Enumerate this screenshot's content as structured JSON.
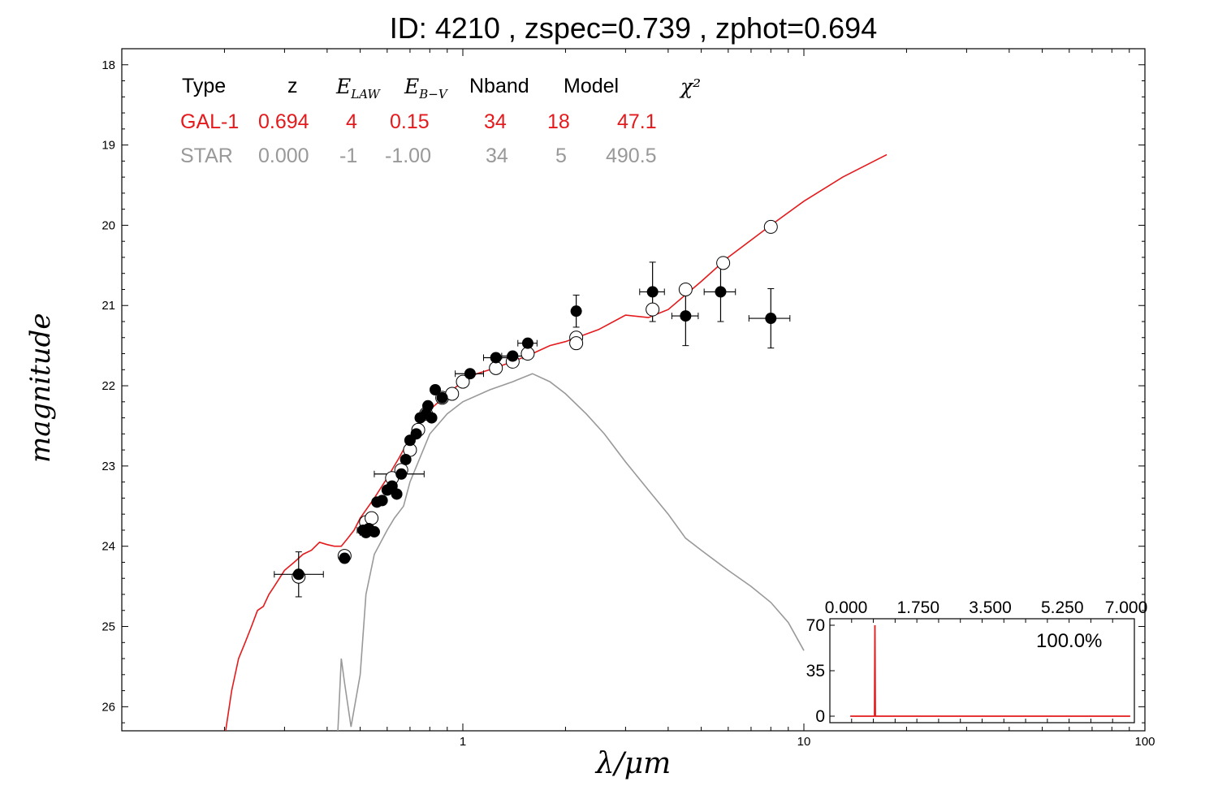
{
  "title": "ID:  4210  , zspec=0.739 , zphot=0.694",
  "chart_data": {
    "type": "scatter",
    "xlabel": "λ/μm",
    "ylabel": "magnitude",
    "xscale": "log",
    "xlim": [
      0.1,
      100
    ],
    "ylim": [
      26.3,
      17.8
    ],
    "x_tick_labels": [
      "1",
      "10",
      "100"
    ],
    "y_ticks": [
      18,
      19,
      20,
      21,
      22,
      23,
      24,
      25,
      26
    ],
    "legend": {
      "headers": [
        "Type",
        "z",
        "E_LAW",
        "E_B-V",
        "Nband",
        "Model",
        "χ²"
      ],
      "rows": [
        {
          "name": "GAL-1",
          "color": "#e41a1c",
          "values": [
            "GAL-1",
            "0.694",
            "4",
            "0.15",
            "34",
            "18",
            "47.1"
          ]
        },
        {
          "name": "STAR",
          "color": "#999999",
          "values": [
            "STAR",
            "0.000",
            "-1",
            "-1.00",
            "34",
            "5",
            "490.5"
          ]
        }
      ]
    },
    "model_gal": [
      [
        0.2,
        26.4
      ],
      [
        0.21,
        25.8
      ],
      [
        0.22,
        25.4
      ],
      [
        0.23,
        25.2
      ],
      [
        0.24,
        25.0
      ],
      [
        0.25,
        24.8
      ],
      [
        0.26,
        24.75
      ],
      [
        0.27,
        24.6
      ],
      [
        0.28,
        24.5
      ],
      [
        0.3,
        24.3
      ],
      [
        0.32,
        24.2
      ],
      [
        0.34,
        24.1
      ],
      [
        0.36,
        24.05
      ],
      [
        0.38,
        23.95
      ],
      [
        0.4,
        23.98
      ],
      [
        0.42,
        24.0
      ],
      [
        0.44,
        24.0
      ],
      [
        0.46,
        23.9
      ],
      [
        0.48,
        23.8
      ],
      [
        0.5,
        23.65
      ],
      [
        0.55,
        23.4
      ],
      [
        0.6,
        23.15
      ],
      [
        0.65,
        22.9
      ],
      [
        0.7,
        22.65
      ],
      [
        0.75,
        22.45
      ],
      [
        0.8,
        22.3
      ],
      [
        0.85,
        22.2
      ],
      [
        0.9,
        22.1
      ],
      [
        1.0,
        21.95
      ],
      [
        1.1,
        21.85
      ],
      [
        1.2,
        21.8
      ],
      [
        1.4,
        21.7
      ],
      [
        1.6,
        21.6
      ],
      [
        1.8,
        21.5
      ],
      [
        2.0,
        21.45
      ],
      [
        2.5,
        21.3
      ],
      [
        3.0,
        21.12
      ],
      [
        3.5,
        21.15
      ],
      [
        4.0,
        21.05
      ],
      [
        5.0,
        20.7
      ],
      [
        6.0,
        20.4
      ],
      [
        8.0,
        20.0
      ],
      [
        10.0,
        19.7
      ],
      [
        13.0,
        19.4
      ],
      [
        17.5,
        19.12
      ]
    ],
    "model_star": [
      [
        0.43,
        26.3
      ],
      [
        0.44,
        25.4
      ],
      [
        0.45,
        25.7
      ],
      [
        0.47,
        26.25
      ],
      [
        0.5,
        25.6
      ],
      [
        0.52,
        24.6
      ],
      [
        0.55,
        24.1
      ],
      [
        0.6,
        23.8
      ],
      [
        0.63,
        23.65
      ],
      [
        0.67,
        23.5
      ],
      [
        0.7,
        23.2
      ],
      [
        0.8,
        22.6
      ],
      [
        0.9,
        22.35
      ],
      [
        1.0,
        22.2
      ],
      [
        1.2,
        22.05
      ],
      [
        1.4,
        21.95
      ],
      [
        1.6,
        21.85
      ],
      [
        1.8,
        21.95
      ],
      [
        2.0,
        22.1
      ],
      [
        2.3,
        22.35
      ],
      [
        2.6,
        22.6
      ],
      [
        3.0,
        22.95
      ],
      [
        3.5,
        23.3
      ],
      [
        4.0,
        23.6
      ],
      [
        4.5,
        23.9
      ],
      [
        5.0,
        24.05
      ],
      [
        6.0,
        24.3
      ],
      [
        7.0,
        24.5
      ],
      [
        8.0,
        24.7
      ],
      [
        9.0,
        24.95
      ],
      [
        10.0,
        25.3
      ]
    ],
    "observed": [
      {
        "x": 0.33,
        "y": 24.35,
        "xerr": [
          0.28,
          0.39
        ],
        "yerr": 0.28
      },
      {
        "x": 0.45,
        "y": 24.15,
        "xerr": [
          0.44,
          0.46
        ],
        "yerr": 0.05
      },
      {
        "x": 0.51,
        "y": 23.8,
        "xerr": [
          0.49,
          0.53
        ],
        "yerr": 0.05
      },
      {
        "x": 0.52,
        "y": 23.83,
        "xerr": [
          0.5,
          0.54
        ],
        "yerr": 0.05
      },
      {
        "x": 0.53,
        "y": 23.78,
        "xerr": [
          0.52,
          0.54
        ],
        "yerr": 0.05
      },
      {
        "x": 0.55,
        "y": 23.82,
        "xerr": [
          0.54,
          0.56
        ],
        "yerr": 0.05
      },
      {
        "x": 0.56,
        "y": 23.45,
        "xerr": [
          0.55,
          0.57
        ],
        "yerr": 0.05
      },
      {
        "x": 0.58,
        "y": 23.43,
        "xerr": [
          0.57,
          0.59
        ],
        "yerr": 0.05
      },
      {
        "x": 0.6,
        "y": 23.3,
        "xerr": [
          0.59,
          0.61
        ],
        "yerr": 0.05
      },
      {
        "x": 0.62,
        "y": 23.25,
        "xerr": [
          0.61,
          0.63
        ],
        "yerr": 0.05
      },
      {
        "x": 0.64,
        "y": 23.35,
        "xerr": [
          0.63,
          0.65
        ],
        "yerr": 0.05
      },
      {
        "x": 0.66,
        "y": 23.1,
        "xerr": [
          0.55,
          0.77
        ],
        "yerr": 0.05
      },
      {
        "x": 0.68,
        "y": 22.92,
        "xerr": [
          0.67,
          0.69
        ],
        "yerr": 0.05
      },
      {
        "x": 0.7,
        "y": 22.68,
        "xerr": [
          0.69,
          0.71
        ],
        "yerr": 0.05
      },
      {
        "x": 0.73,
        "y": 22.6,
        "xerr": [
          0.72,
          0.74
        ],
        "yerr": 0.05
      },
      {
        "x": 0.75,
        "y": 22.4,
        "xerr": [
          0.74,
          0.76
        ],
        "yerr": 0.05
      },
      {
        "x": 0.78,
        "y": 22.35,
        "xerr": [
          0.77,
          0.79
        ],
        "yerr": 0.05
      },
      {
        "x": 0.79,
        "y": 22.25,
        "xerr": [
          0.78,
          0.8
        ],
        "yerr": 0.05
      },
      {
        "x": 0.81,
        "y": 22.4,
        "xerr": [
          0.8,
          0.82
        ],
        "yerr": 0.05
      },
      {
        "x": 0.83,
        "y": 22.05,
        "xerr": [
          0.82,
          0.84
        ],
        "yerr": 0.05
      },
      {
        "x": 0.87,
        "y": 22.15,
        "xerr": [
          0.86,
          0.88
        ],
        "yerr": 0.05
      },
      {
        "x": 1.05,
        "y": 21.85,
        "xerr": [
          0.95,
          1.15
        ],
        "yerr": 0.05
      },
      {
        "x": 1.25,
        "y": 21.65,
        "xerr": [
          1.15,
          1.35
        ],
        "yerr": 0.05
      },
      {
        "x": 1.4,
        "y": 21.63,
        "xerr": [
          1.3,
          1.5
        ],
        "yerr": 0.05
      },
      {
        "x": 1.55,
        "y": 21.47,
        "xerr": [
          1.45,
          1.65
        ],
        "yerr": 0.05
      },
      {
        "x": 2.15,
        "y": 21.07,
        "xerr": [
          2.1,
          2.2
        ],
        "yerr": 0.2
      },
      {
        "x": 3.6,
        "y": 20.83,
        "xerr": [
          3.3,
          3.9
        ],
        "yerr": 0.37
      },
      {
        "x": 4.5,
        "y": 21.13,
        "xerr": [
          4.1,
          4.9
        ],
        "yerr": 0.37
      },
      {
        "x": 5.7,
        "y": 20.83,
        "xerr": [
          5.1,
          6.3
        ],
        "yerr": 0.37
      },
      {
        "x": 8.0,
        "y": 21.16,
        "xerr": [
          6.9,
          9.1
        ],
        "yerr": 0.37
      }
    ],
    "model_mags": [
      {
        "x": 0.33,
        "y": 24.38
      },
      {
        "x": 0.45,
        "y": 24.12
      },
      {
        "x": 0.52,
        "y": 23.7
      },
      {
        "x": 0.54,
        "y": 23.65
      },
      {
        "x": 0.62,
        "y": 23.15
      },
      {
        "x": 0.66,
        "y": 23.05
      },
      {
        "x": 0.7,
        "y": 22.8
      },
      {
        "x": 0.74,
        "y": 22.55
      },
      {
        "x": 0.78,
        "y": 22.35
      },
      {
        "x": 0.87,
        "y": 22.15
      },
      {
        "x": 0.93,
        "y": 22.1
      },
      {
        "x": 1.0,
        "y": 21.95
      },
      {
        "x": 1.25,
        "y": 21.78
      },
      {
        "x": 1.4,
        "y": 21.7
      },
      {
        "x": 1.55,
        "y": 21.6
      },
      {
        "x": 2.15,
        "y": 21.4
      },
      {
        "x": 2.15,
        "y": 21.47
      },
      {
        "x": 3.6,
        "y": 21.05
      },
      {
        "x": 4.5,
        "y": 20.8
      },
      {
        "x": 5.8,
        "y": 20.47
      },
      {
        "x": 8.0,
        "y": 20.02
      }
    ],
    "inset": {
      "type": "line",
      "label": "100.0%",
      "x_tick_labels": [
        "0.000",
        "1.750",
        "3.500",
        "5.250",
        "7.000"
      ],
      "y_ticks": [
        0,
        35,
        70
      ],
      "xlim": [
        0,
        7.0
      ],
      "ylim": [
        -5,
        75
      ],
      "pdz": [
        [
          0.1,
          0
        ],
        [
          0.69,
          0
        ],
        [
          0.7,
          70
        ],
        [
          0.71,
          0
        ],
        [
          6.9,
          0
        ]
      ],
      "color": "#e41a1c"
    }
  }
}
